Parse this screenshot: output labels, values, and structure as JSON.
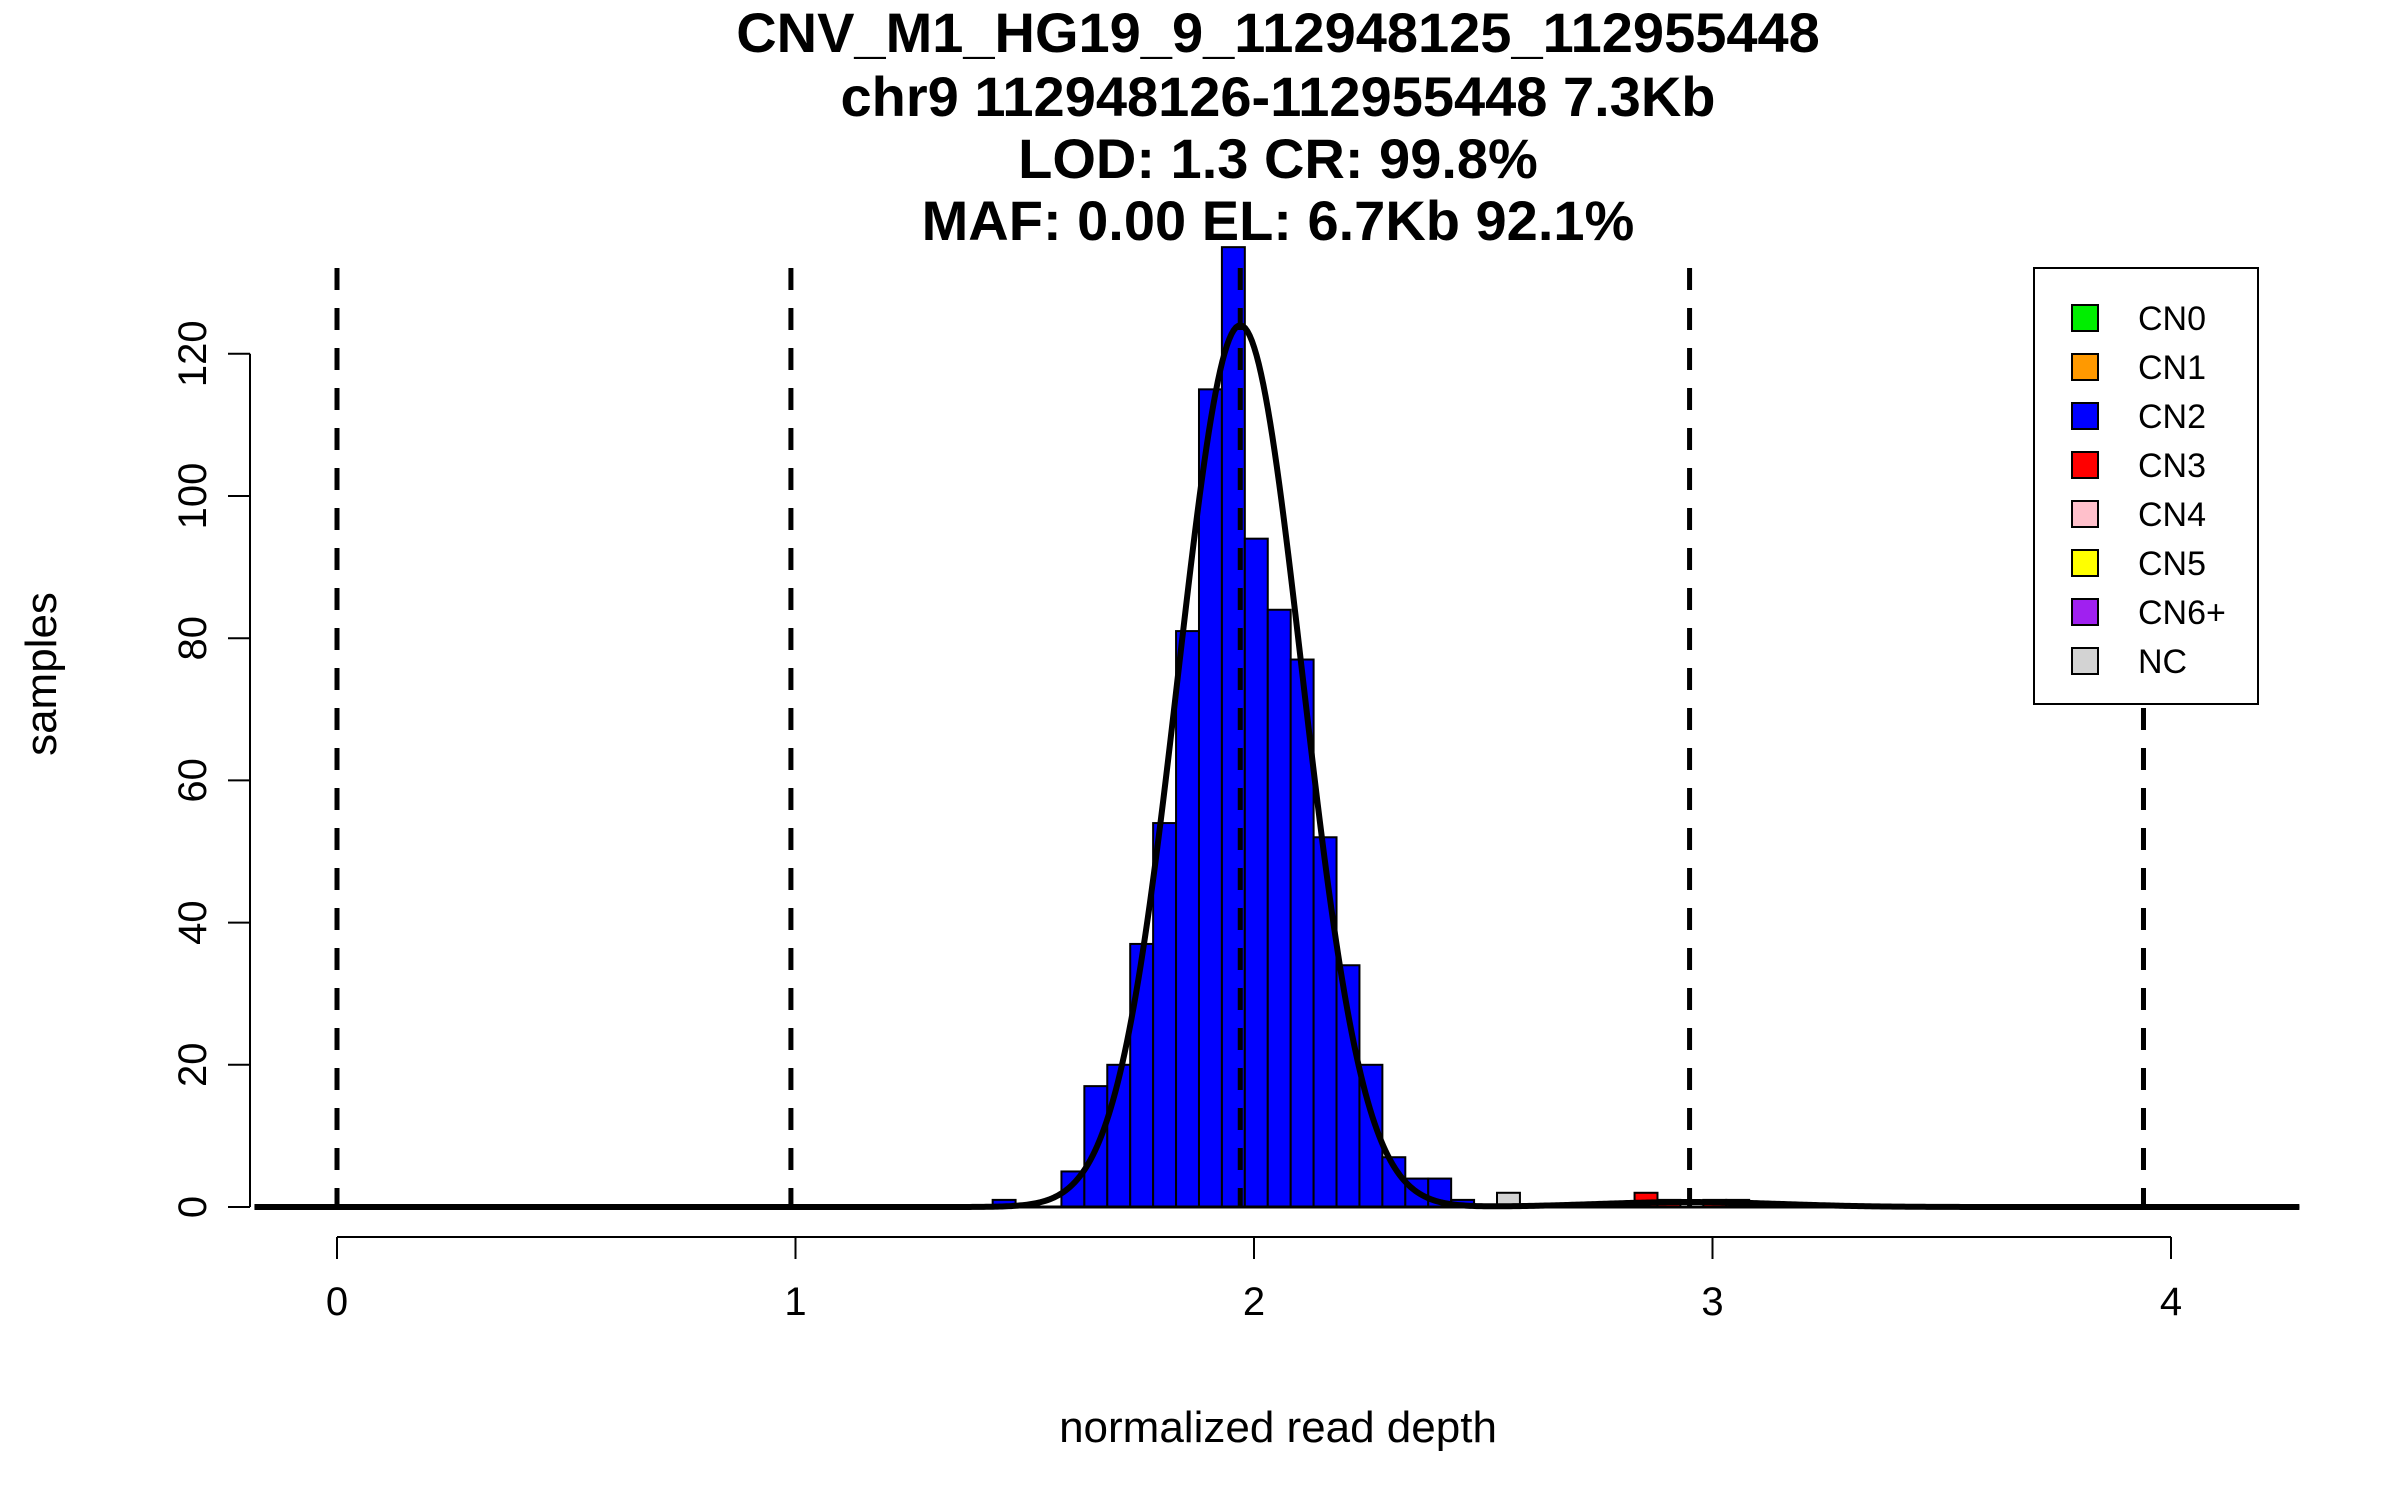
{
  "chart_data": {
    "type": "bar",
    "title_lines": [
      "CNV_M1_HG19_9_112948125_112955448",
      "chr9 112948126-112955448 7.3Kb",
      "LOD: 1.3 CR: 99.8%",
      "MAF: 0.00 EL: 6.7Kb 92.1%"
    ],
    "xlabel": "normalized read depth",
    "ylabel": "samples",
    "xlim": [
      -0.18,
      4.28
    ],
    "ylim": [
      0,
      135
    ],
    "x_ticks": [
      "0",
      "1",
      "2",
      "3",
      "4"
    ],
    "y_ticks": [
      "0",
      "20",
      "40",
      "60",
      "80",
      "100",
      "120"
    ],
    "bin_width": 0.05,
    "bins": [
      {
        "x0": 1.43,
        "count": 1,
        "cn": "CN2"
      },
      {
        "x0": 1.58,
        "count": 5,
        "cn": "CN2"
      },
      {
        "x0": 1.63,
        "count": 17,
        "cn": "CN2"
      },
      {
        "x0": 1.68,
        "count": 20,
        "cn": "CN2"
      },
      {
        "x0": 1.73,
        "count": 37,
        "cn": "CN2"
      },
      {
        "x0": 1.78,
        "count": 54,
        "cn": "CN2"
      },
      {
        "x0": 1.83,
        "count": 81,
        "cn": "CN2"
      },
      {
        "x0": 1.88,
        "count": 115,
        "cn": "CN2"
      },
      {
        "x0": 1.93,
        "count": 135,
        "cn": "CN2"
      },
      {
        "x0": 1.98,
        "count": 94,
        "cn": "CN2"
      },
      {
        "x0": 2.03,
        "count": 84,
        "cn": "CN2"
      },
      {
        "x0": 2.08,
        "count": 77,
        "cn": "CN2"
      },
      {
        "x0": 2.13,
        "count": 52,
        "cn": "CN2"
      },
      {
        "x0": 2.18,
        "count": 34,
        "cn": "CN2"
      },
      {
        "x0": 2.23,
        "count": 20,
        "cn": "CN2"
      },
      {
        "x0": 2.28,
        "count": 7,
        "cn": "CN2"
      },
      {
        "x0": 2.33,
        "count": 4,
        "cn": "CN2"
      },
      {
        "x0": 2.38,
        "count": 4,
        "cn": "CN2"
      },
      {
        "x0": 2.43,
        "count": 1,
        "cn": "CN2"
      },
      {
        "x0": 2.53,
        "count": 2,
        "cn": "NC"
      },
      {
        "x0": 2.83,
        "count": 2,
        "cn": "CN3"
      },
      {
        "x0": 2.88,
        "count": 1,
        "cn": "CN3"
      },
      {
        "x0": 2.98,
        "count": 1,
        "cn": "CN3"
      },
      {
        "x0": 3.03,
        "count": 1,
        "cn": "CN3"
      }
    ],
    "copy_number_lines": [
      0,
      0.99,
      1.97,
      2.95,
      3.94
    ],
    "fit_components": [
      {
        "mean": 1.97,
        "sd": 0.135,
        "peak": 124
      },
      {
        "mean": 2.95,
        "sd": 0.2,
        "peak": 0.7
      }
    ],
    "legend": {
      "placement": "top-right",
      "entries": [
        {
          "label": "CN0",
          "color": "#00ee00"
        },
        {
          "label": "CN1",
          "color": "#ff9900"
        },
        {
          "label": "CN2",
          "color": "#0000ff"
        },
        {
          "label": "CN3",
          "color": "#ff0000"
        },
        {
          "label": "CN4",
          "color": "#ffc0cb"
        },
        {
          "label": "CN5",
          "color": "#ffff00"
        },
        {
          "label": "CN6+",
          "color": "#a020f0"
        },
        {
          "label": "NC",
          "color": "#d3d3d3"
        }
      ]
    },
    "grid": false
  }
}
